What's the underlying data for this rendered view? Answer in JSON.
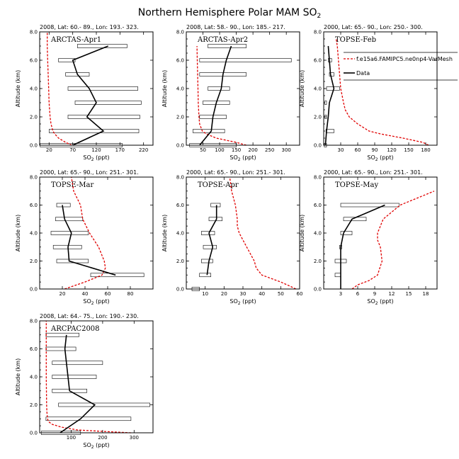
{
  "title": "Northern Hemisphere Polar MAM SO",
  "title_sub": "2",
  "ylabel": "Altitude (km)",
  "xlabel_main": "SO",
  "xlabel_sub": "2",
  "xlabel_unit": " (ppt)",
  "legend": {
    "model": "f.e15a6.FAMIPC5.ne0np4-VarMesh",
    "data": "Data"
  },
  "colors": {
    "model": "#e00000",
    "data": "#000000"
  },
  "chart_data": [
    {
      "type": "line",
      "header": "2008, Lat:  60.- 89., Lon: 193.- 323.",
      "title": "ARCTAS-Apr1",
      "xlim": [
        0,
        240
      ],
      "xticks": [
        20,
        70,
        120,
        170,
        220
      ],
      "xticklabels": [
        "20",
        "70",
        "120",
        "170",
        "220"
      ],
      "ylim": [
        0,
        8
      ],
      "yticks": [
        0,
        2,
        4,
        6,
        8
      ],
      "yticklabels": [
        "0.0",
        "2.0",
        "4.0",
        "6.0",
        "8.0"
      ],
      "obs": {
        "y": [
          0.0,
          1.0,
          2.0,
          3.0,
          4.0,
          5.0,
          6.0,
          7.0
        ],
        "x": [
          70,
          135,
          100,
          120,
          105,
          80,
          70,
          145
        ]
      },
      "boxes": [
        {
          "y": 0.0,
          "x0": 1,
          "x1": 175
        },
        {
          "y": 1.0,
          "x0": 20,
          "x1": 210
        },
        {
          "y": 2.0,
          "x0": 60,
          "x1": 212
        },
        {
          "y": 3.0,
          "x0": 75,
          "x1": 215
        },
        {
          "y": 4.0,
          "x0": 60,
          "x1": 208
        },
        {
          "y": 5.0,
          "x0": 55,
          "x1": 105
        },
        {
          "y": 6.0,
          "x0": 40,
          "x1": 75
        },
        {
          "y": 7.0,
          "x0": 80,
          "x1": 185
        }
      ],
      "model": {
        "y": [
          0.0,
          0.2,
          0.5,
          0.8,
          1.0,
          1.5,
          2.0,
          3.0,
          4.0,
          5.0,
          6.0,
          7.0,
          8.0
        ],
        "x": [
          68,
          55,
          40,
          32,
          28,
          24,
          22,
          20,
          19,
          18,
          17,
          16,
          16
        ]
      }
    },
    {
      "type": "line",
      "header": "2008, Lat:  58.- 90., Lon: 185.- 217.",
      "title": "ARCTAS-Apr2",
      "xlim": [
        0,
        340
      ],
      "xticks": [
        50,
        100,
        150,
        200,
        250,
        300
      ],
      "xticklabels": [
        "50",
        "100",
        "150",
        "200",
        "250",
        "300"
      ],
      "ylim": [
        0,
        8
      ],
      "yticks": [
        0,
        2,
        4,
        6,
        8
      ],
      "yticklabels": [
        "0.0",
        "2.0",
        "4.0",
        "6.0",
        "8.0"
      ],
      "obs": {
        "y": [
          0.0,
          1.0,
          2.0,
          3.0,
          4.0,
          5.0,
          6.0,
          7.0
        ],
        "x": [
          40,
          75,
          80,
          90,
          105,
          110,
          120,
          135
        ]
      },
      "boxes": [
        {
          "y": 0.0,
          "x0": 10,
          "x1": 150
        },
        {
          "y": 1.0,
          "x0": 20,
          "x1": 115
        },
        {
          "y": 2.0,
          "x0": 40,
          "x1": 120
        },
        {
          "y": 3.0,
          "x0": 50,
          "x1": 130
        },
        {
          "y": 4.0,
          "x0": 65,
          "x1": 130
        },
        {
          "y": 5.0,
          "x0": 40,
          "x1": 180
        },
        {
          "y": 6.0,
          "x0": 40,
          "x1": 315
        },
        {
          "y": 7.0,
          "x0": 65,
          "x1": 180
        }
      ],
      "model": {
        "y": [
          0.0,
          0.2,
          0.5,
          0.8,
          1.0,
          1.5,
          2.0,
          3.0,
          4.0,
          5.0,
          6.0,
          7.0
        ],
        "x": [
          180,
          150,
          90,
          60,
          48,
          40,
          38,
          36,
          35,
          34,
          33,
          32
        ]
      }
    },
    {
      "type": "line",
      "header": "2000, Lat: 65.- 90., Lon: 250.- 300.",
      "title": "TOPSE-Feb",
      "xlim": [
        0,
        200
      ],
      "xticks": [
        30,
        60,
        90,
        120,
        150,
        180
      ],
      "xticklabels": [
        "30",
        "60",
        "90",
        "120",
        "150",
        "180"
      ],
      "ylim": [
        0,
        8
      ],
      "yticks": [
        0,
        2,
        4,
        6,
        8
      ],
      "yticklabels": [
        "0.0",
        "2.0",
        "4.0",
        "6.0",
        "8.0"
      ],
      "obs": {
        "y": [
          0.0,
          1.0,
          2.0,
          3.0,
          4.0,
          5.0,
          6.0,
          7.0
        ],
        "x": [
          3,
          5,
          8,
          10,
          18,
          12,
          10,
          8
        ]
      },
      "boxes": [
        {
          "y": 0.0,
          "x0": 1,
          "x1": 5
        },
        {
          "y": 1.0,
          "x0": 4,
          "x1": 18
        },
        {
          "y": 2.0,
          "x0": 2,
          "x1": 5
        },
        {
          "y": 3.0,
          "x0": 2,
          "x1": 5
        },
        {
          "y": 4.0,
          "x0": 5,
          "x1": 28
        },
        {
          "y": 5.0,
          "x0": 10,
          "x1": 18
        },
        {
          "y": 6.0,
          "x0": 8,
          "x1": 14
        }
      ],
      "model": {
        "y": [
          0.0,
          0.2,
          0.5,
          0.8,
          1.0,
          1.5,
          2.0,
          2.5,
          3.0,
          4.0,
          5.0,
          6.0,
          7.0,
          7.5
        ],
        "x": [
          185,
          175,
          140,
          100,
          80,
          60,
          45,
          38,
          35,
          30,
          28,
          26,
          24,
          22
        ]
      }
    },
    {
      "type": "line",
      "header": "2000, Lat: 65.- 90., Lon: 251.- 301.",
      "title": "TOPSE-Mar",
      "xlim": [
        0,
        100
      ],
      "xticks": [
        20,
        40,
        60,
        80
      ],
      "xticklabels": [
        "20",
        "40",
        "60",
        "80"
      ],
      "ylim": [
        0,
        8
      ],
      "yticks": [
        0,
        2,
        4,
        6,
        8
      ],
      "yticklabels": [
        "0.0",
        "2.0",
        "4.0",
        "6.0",
        "8.0"
      ],
      "obs": {
        "y": [
          1.0,
          2.0,
          3.0,
          4.0,
          5.0,
          6.0
        ],
        "x": [
          67,
          26,
          25,
          28,
          22,
          20
        ]
      },
      "boxes": [
        {
          "y": 1.0,
          "x0": 45,
          "x1": 92
        },
        {
          "y": 2.0,
          "x0": 15,
          "x1": 43
        },
        {
          "y": 3.0,
          "x0": 12,
          "x1": 37
        },
        {
          "y": 4.0,
          "x0": 10,
          "x1": 43
        },
        {
          "y": 5.0,
          "x0": 14,
          "x1": 38
        },
        {
          "y": 6.0,
          "x0": 15,
          "x1": 27
        }
      ],
      "model": {
        "y": [
          0.0,
          0.5,
          1.0,
          1.5,
          2.0,
          3.0,
          4.0,
          5.0,
          6.0,
          7.0,
          8.0
        ],
        "x": [
          22,
          40,
          55,
          58,
          57,
          52,
          44,
          38,
          36,
          30,
          28
        ]
      }
    },
    {
      "type": "line",
      "header": "2000, Lat: 65.- 90., Lon: 251.- 301.",
      "title": "TOPSE-Apr",
      "xlim": [
        0,
        60
      ],
      "xticks": [
        10,
        20,
        30,
        40,
        50,
        60
      ],
      "xticklabels": [
        "10",
        "20",
        "30",
        "40",
        "50",
        "60"
      ],
      "ylim": [
        0,
        8
      ],
      "yticks": [
        0,
        2,
        4,
        6,
        8
      ],
      "yticklabels": [
        "0.0",
        "2.0",
        "4.0",
        "6.0",
        "8.0"
      ],
      "obs": {
        "y": [
          1.0,
          2.0,
          3.0,
          4.0,
          5.0,
          6.0
        ],
        "x": [
          11,
          12,
          14,
          12,
          16,
          16
        ]
      },
      "boxes": [
        {
          "y": 0.0,
          "x0": 3,
          "x1": 7
        },
        {
          "y": 1.0,
          "x0": 7,
          "x1": 13
        },
        {
          "y": 2.0,
          "x0": 8,
          "x1": 14
        },
        {
          "y": 3.0,
          "x0": 9,
          "x1": 16
        },
        {
          "y": 4.0,
          "x0": 8,
          "x1": 15
        },
        {
          "y": 5.0,
          "x0": 12,
          "x1": 19
        },
        {
          "y": 6.0,
          "x0": 13,
          "x1": 18
        }
      ],
      "model": {
        "y": [
          0.0,
          0.2,
          0.5,
          1.0,
          1.5,
          2.0,
          3.0,
          4.0,
          4.5,
          5.0,
          6.0,
          7.0,
          8.0
        ],
        "x": [
          58,
          55,
          50,
          40,
          37,
          36,
          32,
          28,
          27,
          27,
          26,
          24,
          23
        ]
      }
    },
    {
      "type": "line",
      "header": "2000, Lat: 65.- 90., Lon: 251.- 301.",
      "title": "TOPSE-May",
      "xlim": [
        0,
        20
      ],
      "xticks": [
        3,
        6,
        9,
        12,
        15,
        18
      ],
      "xticklabels": [
        "3",
        "6",
        "9",
        "12",
        "15",
        "18"
      ],
      "ylim": [
        0,
        8
      ],
      "yticks": [
        0,
        2,
        4,
        6,
        8
      ],
      "yticklabels": [
        "0.0",
        "2.0",
        "4.0",
        "6.0",
        "8.0"
      ],
      "obs": {
        "y": [
          0.0,
          1.0,
          2.0,
          3.0,
          4.0,
          5.0,
          6.0
        ],
        "x": [
          3,
          3,
          3,
          3,
          3.5,
          5,
          10.8
        ]
      },
      "boxes": [
        {
          "y": 1.0,
          "x0": 2,
          "x1": 3
        },
        {
          "y": 2.0,
          "x0": 2,
          "x1": 4
        },
        {
          "y": 3.0,
          "x0": 2.8,
          "x1": 3.2
        },
        {
          "y": 4.0,
          "x0": 3,
          "x1": 5
        },
        {
          "y": 5.0,
          "x0": 3.5,
          "x1": 7.5
        },
        {
          "y": 6.0,
          "x0": 3,
          "x1": 13.3
        }
      ],
      "model": {
        "y": [
          0.0,
          0.3,
          0.6,
          1.0,
          2.0,
          3.0,
          3.5,
          4.0,
          5.0,
          6.0,
          7.0
        ],
        "x": [
          5,
          6,
          8,
          9.5,
          10.3,
          10,
          9.5,
          9.5,
          10.5,
          13.5,
          19.5
        ]
      }
    },
    {
      "type": "line",
      "header": "2008, Lat: 64.- 75., Lon: 190.- 230.",
      "title": "ARCPAC2008",
      "xlim": [
        0,
        360
      ],
      "xticks": [
        100,
        200,
        300
      ],
      "xticklabels": [
        "100",
        "200",
        "300"
      ],
      "ylim": [
        0,
        8
      ],
      "yticks": [
        0,
        2,
        4,
        6,
        8
      ],
      "yticklabels": [
        "0.0",
        "2.0",
        "4.0",
        "6.0",
        "8.0"
      ],
      "obs": {
        "y": [
          0.0,
          1.0,
          2.0,
          3.0,
          4.0,
          5.0,
          6.0,
          7.0
        ],
        "x": [
          65,
          130,
          175,
          95,
          90,
          85,
          80,
          85
        ]
      },
      "boxes": [
        {
          "y": 0.0,
          "x0": 5,
          "x1": 130
        },
        {
          "y": 1.0,
          "x0": 20,
          "x1": 290
        },
        {
          "y": 2.0,
          "x0": 60,
          "x1": 350
        },
        {
          "y": 3.0,
          "x0": 40,
          "x1": 150
        },
        {
          "y": 4.0,
          "x0": 40,
          "x1": 180
        },
        {
          "y": 5.0,
          "x0": 40,
          "x1": 200
        },
        {
          "y": 6.0,
          "x0": 20,
          "x1": 115
        },
        {
          "y": 7.0,
          "x0": 20,
          "x1": 125
        }
      ],
      "model": {
        "y": [
          0.0,
          0.1,
          0.2,
          0.4,
          0.6,
          0.8,
          1.0,
          1.5,
          2.0,
          4.0,
          6.0,
          8.0
        ],
        "x": [
          290,
          200,
          120,
          70,
          40,
          28,
          25,
          23,
          22,
          21,
          21,
          21
        ]
      }
    }
  ]
}
